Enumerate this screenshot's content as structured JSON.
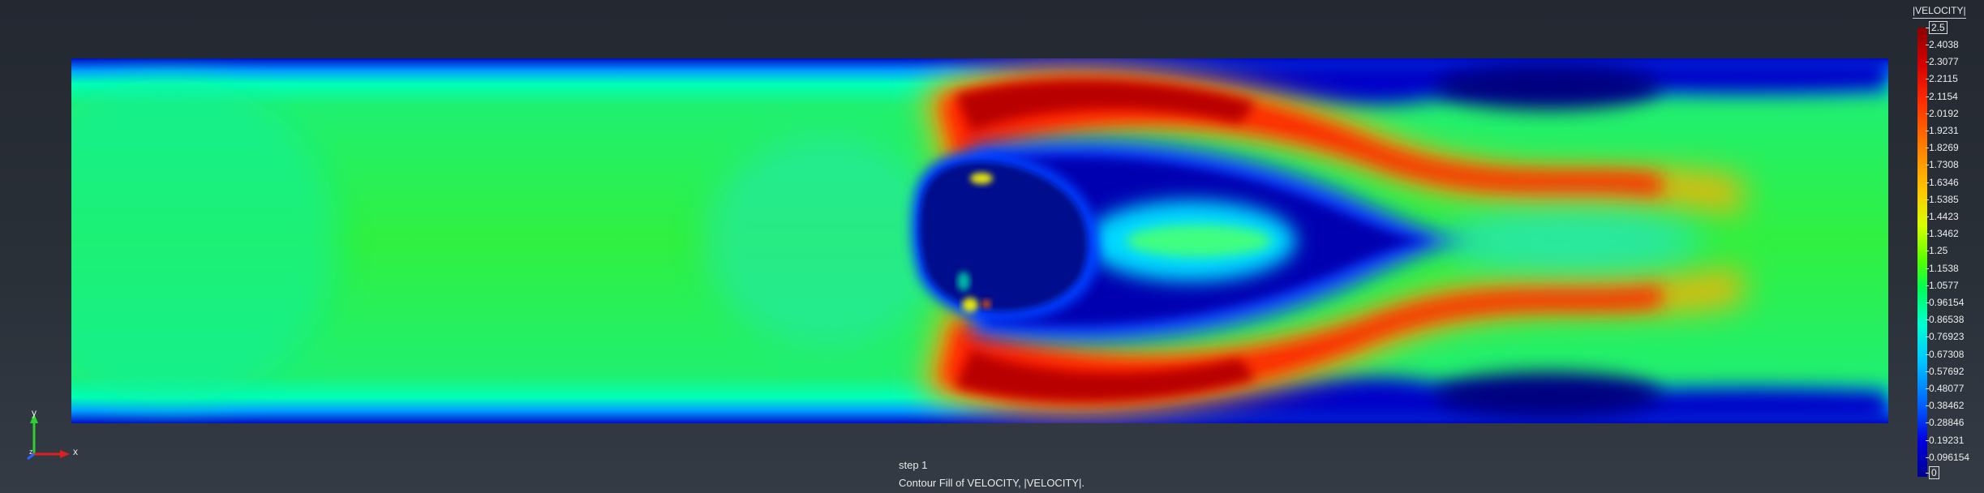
{
  "legend": {
    "title": "|VELOCITY|",
    "max_label": "2.5",
    "min_label": "0",
    "tick_labels": [
      "2.4038",
      "2.3077",
      "2.2115",
      "2.1154",
      "2.0192",
      "1.9231",
      "1.8269",
      "1.7308",
      "1.6346",
      "1.5385",
      "1.4423",
      "1.3462",
      "1.25",
      "1.1538",
      "1.0577",
      "0.96154",
      "0.86538",
      "0.76923",
      "0.67308",
      "0.57692",
      "0.48077",
      "0.38462",
      "0.28846",
      "0.19231",
      "0.096154"
    ]
  },
  "status": {
    "step": "step 1",
    "description": "Contour Fill of VELOCITY, |VELOCITY|."
  },
  "triad": {
    "y_label": "y",
    "x_label": "x",
    "z_label": "z"
  },
  "colors": {
    "background_top": "#232831",
    "background_bottom": "#343b45",
    "field_base": "#2cf53a",
    "low_velocity": "#000a8c",
    "high_velocity": "#d40000"
  }
}
